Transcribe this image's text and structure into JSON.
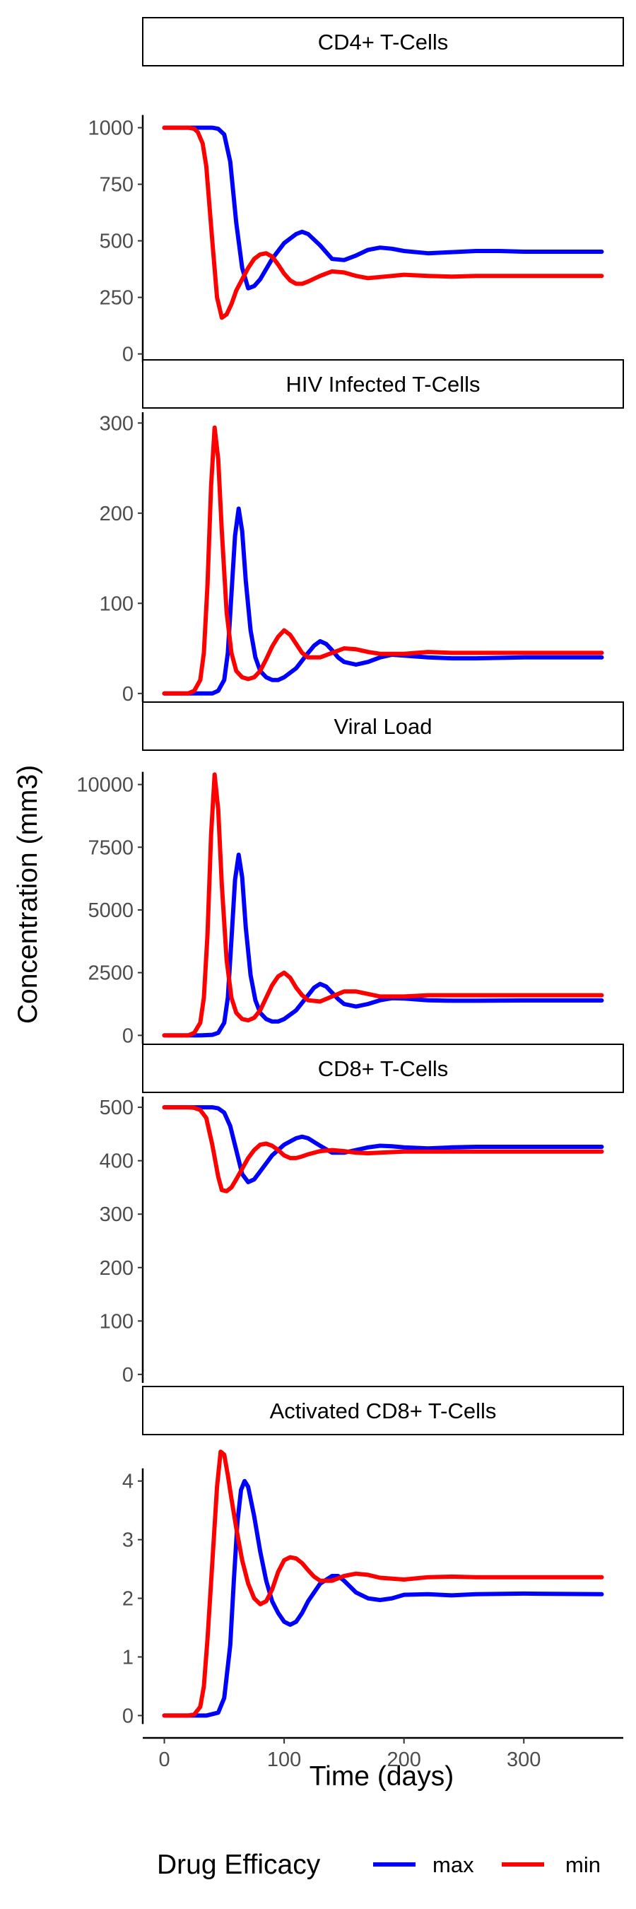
{
  "chart_data": {
    "type": "line",
    "ylabel": "Concentration (mm3)",
    "xlabel": "Time (days)",
    "xlim": [
      -18,
      383
    ],
    "x_ticks": [
      0,
      100,
      200,
      300
    ],
    "x_tick_labels": [
      "0",
      "100",
      "200",
      "300"
    ],
    "grid": false,
    "legend": {
      "title": "Drug Efficacy",
      "position": "bottom",
      "entries": [
        {
          "name": "max",
          "color": "#0000ff"
        },
        {
          "name": "min",
          "color": "#ff0000"
        }
      ]
    },
    "panels": [
      {
        "title": "CD4+ T-Cells",
        "ylim": [
          -20,
          1255
        ],
        "y_ticks": [
          0,
          250,
          500,
          750,
          1000
        ],
        "y_tick_labels": [
          "0",
          "250",
          "500",
          "750",
          "1000"
        ],
        "series": [
          {
            "name": "max",
            "color": "#0000ff",
            "x": [
              0,
              30,
              40,
              45,
              50,
              55,
              60,
              65,
              70,
              75,
              80,
              90,
              100,
              110,
              115,
              120,
              130,
              140,
              150,
              160,
              170,
              180,
              190,
              200,
              220,
              240,
              260,
              280,
              300,
              330,
              365
            ],
            "y": [
              1000,
              1000,
              1000,
              995,
              970,
              850,
              580,
              380,
              290,
              300,
              330,
              420,
              490,
              530,
              540,
              530,
              480,
              420,
              415,
              435,
              460,
              470,
              465,
              455,
              445,
              450,
              455,
              455,
              452,
              452,
              452
            ]
          },
          {
            "name": "min",
            "color": "#ff0000",
            "x": [
              0,
              20,
              25,
              28,
              32,
              35,
              40,
              44,
              48,
              52,
              56,
              60,
              65,
              70,
              75,
              80,
              85,
              90,
              95,
              100,
              105,
              110,
              115,
              120,
              130,
              140,
              150,
              160,
              170,
              180,
              200,
              220,
              240,
              260,
              300,
              365
            ],
            "y": [
              1000,
              1000,
              995,
              980,
              930,
              830,
              500,
              250,
              160,
              175,
              220,
              280,
              330,
              380,
              420,
              440,
              445,
              430,
              395,
              355,
              325,
              310,
              310,
              320,
              345,
              365,
              360,
              345,
              335,
              340,
              350,
              345,
              342,
              345,
              345,
              345
            ]
          }
        ]
      },
      {
        "title": "HIV Infected T-Cells",
        "ylim": [
          -8,
          312
        ],
        "y_ticks": [
          0,
          100,
          200,
          300
        ],
        "y_tick_labels": [
          "0",
          "100",
          "200",
          "300"
        ],
        "series": [
          {
            "name": "max",
            "color": "#0000ff",
            "x": [
              0,
              30,
              40,
              45,
              50,
              53,
              56,
              59,
              62,
              65,
              68,
              72,
              76,
              80,
              85,
              90,
              95,
              100,
              110,
              120,
              125,
              130,
              135,
              140,
              145,
              150,
              160,
              170,
              180,
              190,
              200,
              220,
              240,
              260,
              300,
              365
            ],
            "y": [
              0,
              0,
              0,
              3,
              15,
              45,
              110,
              175,
              205,
              180,
              125,
              70,
              40,
              25,
              18,
              15,
              15,
              18,
              28,
              45,
              53,
              58,
              55,
              48,
              40,
              35,
              32,
              35,
              40,
              43,
              42,
              40,
              39,
              39,
              40,
              40
            ]
          },
          {
            "name": "min",
            "color": "#ff0000",
            "x": [
              0,
              20,
              25,
              30,
              33,
              36,
              39,
              42,
              45,
              48,
              52,
              56,
              60,
              65,
              70,
              75,
              80,
              85,
              90,
              95,
              100,
              105,
              110,
              115,
              120,
              130,
              140,
              150,
              160,
              170,
              180,
              200,
              220,
              240,
              260,
              300,
              365
            ],
            "y": [
              0,
              0,
              3,
              15,
              45,
              120,
              230,
              295,
              260,
              180,
              90,
              45,
              25,
              18,
              16,
              18,
              25,
              38,
              52,
              63,
              70,
              65,
              55,
              45,
              40,
              40,
              45,
              50,
              49,
              46,
              44,
              44,
              46,
              45,
              45,
              45,
              45
            ]
          }
        ]
      },
      {
        "title": "Viral Load",
        "ylim": [
          -300,
          11200
        ],
        "y_ticks": [
          0,
          2500,
          5000,
          7500,
          10000
        ],
        "y_tick_labels": [
          "0",
          "2500",
          "5000",
          "7500",
          "10000"
        ],
        "series": [
          {
            "name": "max",
            "color": "#0000ff",
            "x": [
              0,
              30,
              40,
              45,
              50,
              53,
              56,
              59,
              62,
              65,
              68,
              72,
              76,
              80,
              85,
              90,
              95,
              100,
              110,
              120,
              125,
              130,
              135,
              140,
              145,
              150,
              160,
              170,
              180,
              190,
              200,
              220,
              240,
              260,
              300,
              365
            ],
            "y": [
              0,
              0,
              20,
              100,
              500,
              1500,
              3800,
              6200,
              7200,
              6300,
              4300,
              2400,
              1400,
              900,
              650,
              550,
              550,
              650,
              1000,
              1600,
              1900,
              2050,
              1950,
              1700,
              1450,
              1250,
              1150,
              1250,
              1400,
              1480,
              1470,
              1400,
              1380,
              1380,
              1390,
              1390
            ]
          },
          {
            "name": "min",
            "color": "#ff0000",
            "x": [
              0,
              20,
              25,
              30,
              33,
              36,
              39,
              42,
              45,
              48,
              52,
              56,
              60,
              65,
              70,
              75,
              80,
              85,
              90,
              95,
              100,
              105,
              110,
              115,
              120,
              130,
              140,
              150,
              160,
              170,
              180,
              200,
              220,
              240,
              260,
              300,
              365
            ],
            "y": [
              0,
              0,
              100,
              500,
              1500,
              4000,
              8000,
              10400,
              9000,
              6000,
              3000,
              1500,
              900,
              650,
              600,
              700,
              1000,
              1500,
              2000,
              2350,
              2500,
              2300,
              1900,
              1600,
              1400,
              1350,
              1550,
              1750,
              1750,
              1650,
              1550,
              1550,
              1600,
              1600,
              1600,
              1600,
              1600
            ]
          }
        ]
      },
      {
        "title": "CD8+ T-Cells",
        "ylim": [
          -20,
          520
        ],
        "y_ticks": [
          0,
          100,
          200,
          300,
          400,
          500
        ],
        "y_tick_labels": [
          "0",
          "100",
          "200",
          "300",
          "400",
          "500"
        ],
        "series": [
          {
            "name": "max",
            "color": "#0000ff",
            "x": [
              0,
              30,
              40,
              45,
              50,
              55,
              60,
              65,
              70,
              75,
              80,
              90,
              100,
              110,
              115,
              120,
              130,
              140,
              150,
              160,
              170,
              180,
              190,
              200,
              220,
              240,
              260,
              300,
              365
            ],
            "y": [
              500,
              500,
              500,
              498,
              490,
              465,
              420,
              375,
              360,
              365,
              380,
              410,
              430,
              442,
              445,
              442,
              428,
              415,
              415,
              420,
              425,
              428,
              427,
              425,
              423,
              425,
              426,
              426,
              426
            ]
          },
          {
            "name": "min",
            "color": "#ff0000",
            "x": [
              0,
              20,
              25,
              30,
              35,
              40,
              45,
              48,
              52,
              56,
              60,
              65,
              70,
              75,
              80,
              85,
              90,
              95,
              100,
              105,
              110,
              115,
              120,
              130,
              140,
              150,
              160,
              170,
              180,
              200,
              220,
              260,
              300,
              365
            ],
            "y": [
              500,
              500,
              499,
              495,
              480,
              430,
              370,
              345,
              343,
              350,
              365,
              385,
              405,
              420,
              430,
              432,
              428,
              420,
              410,
              405,
              405,
              408,
              412,
              418,
              420,
              418,
              415,
              414,
              415,
              417,
              417,
              417,
              417,
              417
            ]
          }
        ]
      },
      {
        "title": "Activated CD8+ T-Cells",
        "ylim": [
          -0.2,
          4.72
        ],
        "y_ticks": [
          0,
          1,
          2,
          3,
          4
        ],
        "y_tick_labels": [
          "0",
          "1",
          "2",
          "3",
          "4"
        ],
        "series": [
          {
            "name": "max",
            "color": "#0000ff",
            "x": [
              0,
              35,
              45,
              50,
              55,
              58,
              61,
              64,
              67,
              70,
              75,
              80,
              85,
              90,
              95,
              100,
              105,
              110,
              115,
              120,
              130,
              140,
              145,
              150,
              160,
              170,
              180,
              190,
              200,
              220,
              240,
              260,
              300,
              365
            ],
            "y": [
              0,
              0,
              0.05,
              0.3,
              1.2,
              2.3,
              3.3,
              3.85,
              4.0,
              3.9,
              3.4,
              2.8,
              2.3,
              1.95,
              1.75,
              1.6,
              1.55,
              1.6,
              1.75,
              1.95,
              2.25,
              2.38,
              2.38,
              2.3,
              2.1,
              2.0,
              1.97,
              2.0,
              2.06,
              2.07,
              2.05,
              2.07,
              2.08,
              2.07
            ]
          },
          {
            "name": "min",
            "color": "#ff0000",
            "x": [
              0,
              20,
              25,
              30,
              33,
              36,
              40,
              44,
              47,
              50,
              53,
              56,
              60,
              65,
              70,
              75,
              80,
              85,
              90,
              95,
              100,
              105,
              110,
              115,
              120,
              125,
              130,
              140,
              150,
              160,
              170,
              180,
              200,
              220,
              240,
              260,
              300,
              365
            ],
            "y": [
              0,
              0,
              0.02,
              0.15,
              0.5,
              1.3,
              2.6,
              3.9,
              4.5,
              4.45,
              4.1,
              3.7,
              3.2,
              2.65,
              2.25,
              2.0,
              1.9,
              1.95,
              2.15,
              2.45,
              2.65,
              2.7,
              2.68,
              2.6,
              2.48,
              2.37,
              2.3,
              2.3,
              2.38,
              2.42,
              2.4,
              2.35,
              2.32,
              2.36,
              2.37,
              2.36,
              2.36,
              2.36
            ]
          }
        ]
      }
    ]
  }
}
